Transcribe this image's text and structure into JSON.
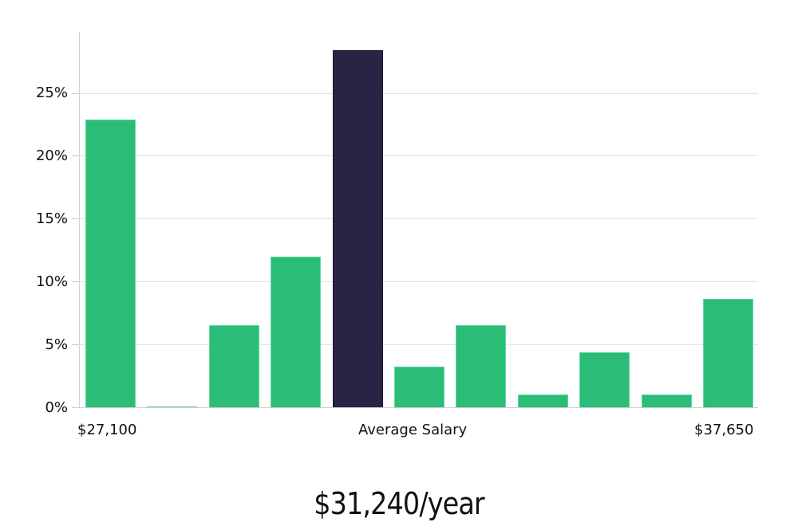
{
  "chart_data": {
    "type": "bar",
    "title": "",
    "xlabel": "Average Salary",
    "ylabel": "",
    "x_range_labels": {
      "min": "$27,100",
      "max": "$37,650"
    },
    "categories": [
      "bin1",
      "bin2",
      "bin3",
      "bin4",
      "bin5",
      "bin6",
      "bin7",
      "bin8",
      "bin9",
      "bin10",
      "bin11"
    ],
    "values": [
      22.9,
      0.1,
      6.6,
      12.0,
      28.4,
      3.3,
      6.6,
      1.1,
      4.4,
      1.1,
      8.7
    ],
    "highlight_index": 4,
    "yticks": [
      "0%",
      "5%",
      "10%",
      "15%",
      "20%",
      "25%"
    ],
    "ylim": [
      0,
      30
    ],
    "grid": true,
    "colors": {
      "default": "#2bbd77",
      "highlight": "#272444"
    }
  },
  "axis": {
    "y_ticks": [
      "0%",
      "5%",
      "10%",
      "15%",
      "20%",
      "25%"
    ],
    "x_min_label": "$27,100",
    "x_center_label": "Average Salary",
    "x_max_label": "$37,650"
  },
  "summary": {
    "average_salary": "$31,240/year"
  }
}
